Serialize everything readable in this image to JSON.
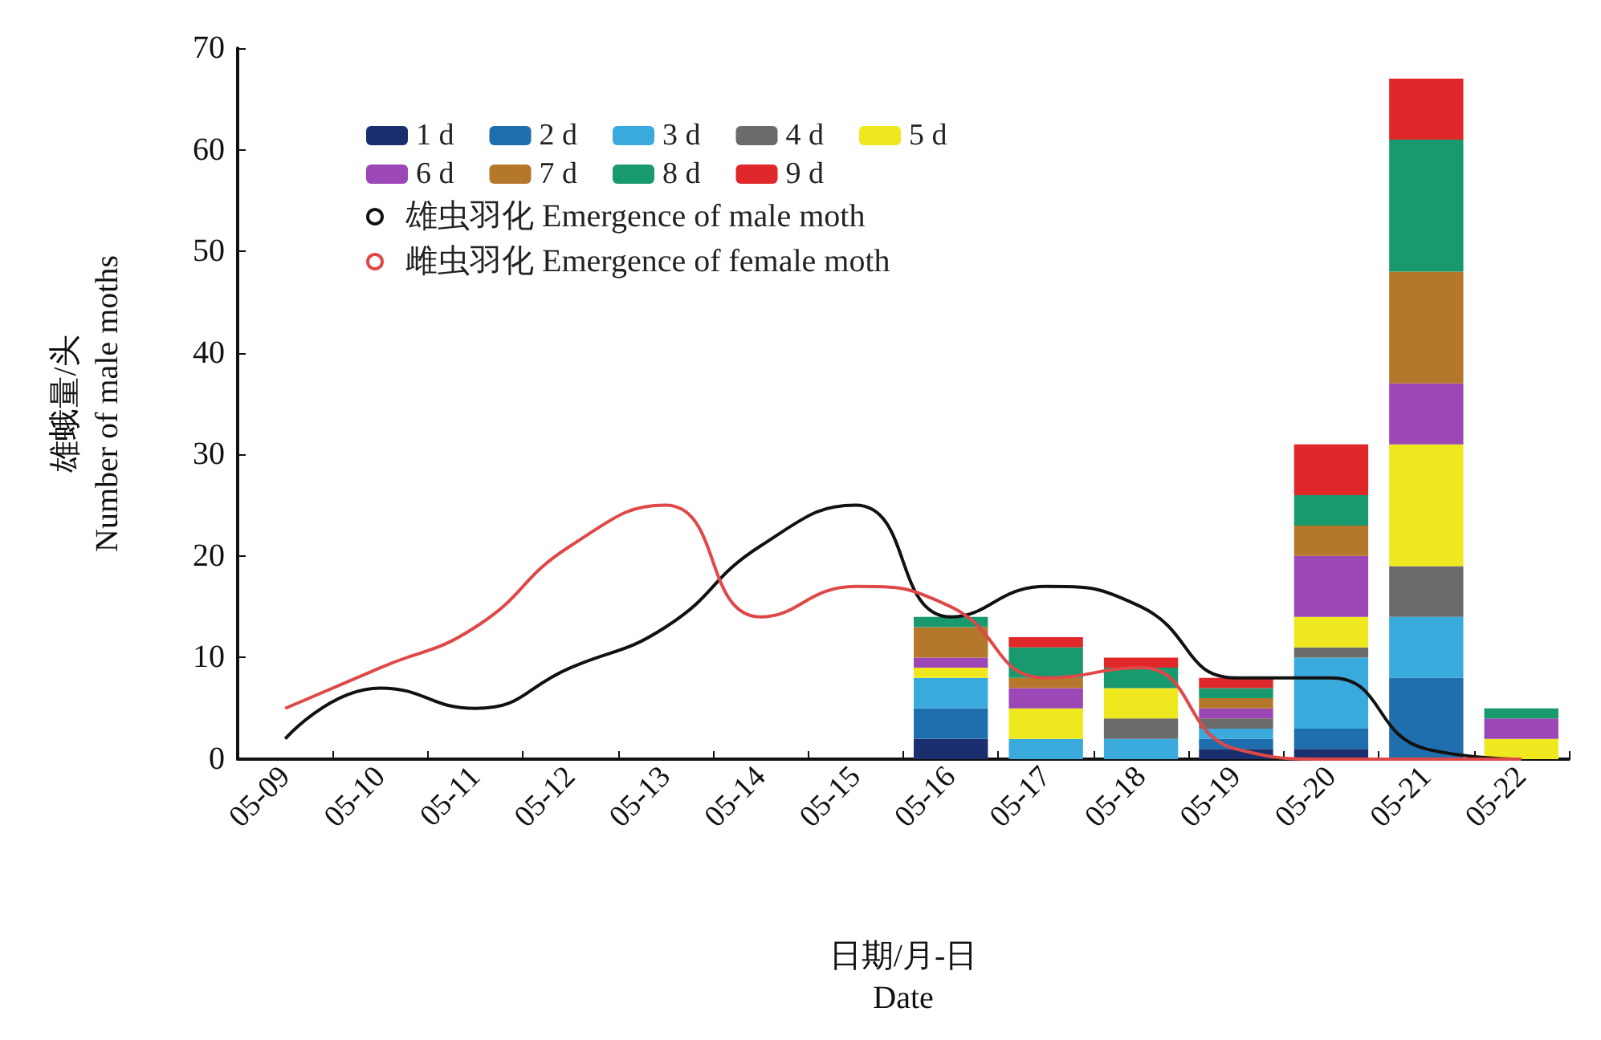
{
  "chart_data": {
    "type": "bar",
    "stacked": true,
    "xlabel": "日期/月-日\nDate",
    "ylabel": "雄蛾量/头\nNumber of male moths",
    "categories": [
      "05-09",
      "05-10",
      "05-11",
      "05-12",
      "05-13",
      "05-14",
      "05-15",
      "05-16",
      "05-17",
      "05-18",
      "05-19",
      "05-20",
      "05-21",
      "05-22"
    ],
    "ylim": [
      0,
      70
    ],
    "yticks": [
      0,
      10,
      20,
      30,
      40,
      50,
      60,
      70
    ],
    "grid": false,
    "legend": "top left",
    "series": [
      {
        "name": "1 d",
        "color": "#1b2f6e",
        "values": [
          null,
          null,
          null,
          null,
          null,
          null,
          null,
          2,
          0,
          0,
          1,
          1,
          0,
          0
        ]
      },
      {
        "name": "2 d",
        "color": "#1f6fae",
        "values": [
          null,
          null,
          null,
          null,
          null,
          null,
          null,
          3,
          0,
          0,
          1,
          2,
          8,
          0
        ]
      },
      {
        "name": "3 d",
        "color": "#3aa9dc",
        "values": [
          null,
          null,
          null,
          null,
          null,
          null,
          null,
          3,
          2,
          2,
          1,
          7,
          6,
          0
        ]
      },
      {
        "name": "4 d",
        "color": "#6b6b6b",
        "values": [
          null,
          null,
          null,
          null,
          null,
          null,
          null,
          0,
          0,
          2,
          1,
          1,
          5,
          0
        ]
      },
      {
        "name": "5 d",
        "color": "#f0e81e",
        "values": [
          null,
          null,
          null,
          null,
          null,
          null,
          null,
          1,
          3,
          3,
          0,
          3,
          12,
          2
        ]
      },
      {
        "name": "6 d",
        "color": "#9b47b5",
        "values": [
          null,
          null,
          null,
          null,
          null,
          null,
          null,
          1,
          2,
          0,
          1,
          6,
          6,
          2
        ]
      },
      {
        "name": "7 d",
        "color": "#b5772a",
        "values": [
          null,
          null,
          null,
          null,
          null,
          null,
          null,
          3,
          1,
          0,
          1,
          3,
          11,
          0
        ]
      },
      {
        "name": "8 d",
        "color": "#199a6e",
        "values": [
          null,
          null,
          null,
          null,
          null,
          null,
          null,
          1,
          3,
          2,
          1,
          3,
          13,
          1
        ]
      },
      {
        "name": "9 d",
        "color": "#e0282a",
        "values": [
          null,
          null,
          null,
          null,
          null,
          null,
          null,
          0,
          1,
          1,
          1,
          5,
          6,
          0
        ]
      },
      {
        "name": "雄虫羽化 Emergence of male moth",
        "type": "line",
        "color": "#111111",
        "values": [
          2,
          7,
          5,
          9,
          13,
          21,
          25,
          14,
          17,
          15,
          8,
          8,
          1,
          0
        ]
      },
      {
        "name": "雌虫羽化 Emergence of female moth",
        "type": "line",
        "color": "#e04848",
        "values": [
          5,
          9,
          13,
          21,
          25,
          14,
          17,
          15,
          8,
          9,
          1,
          0,
          0,
          0
        ]
      }
    ]
  }
}
